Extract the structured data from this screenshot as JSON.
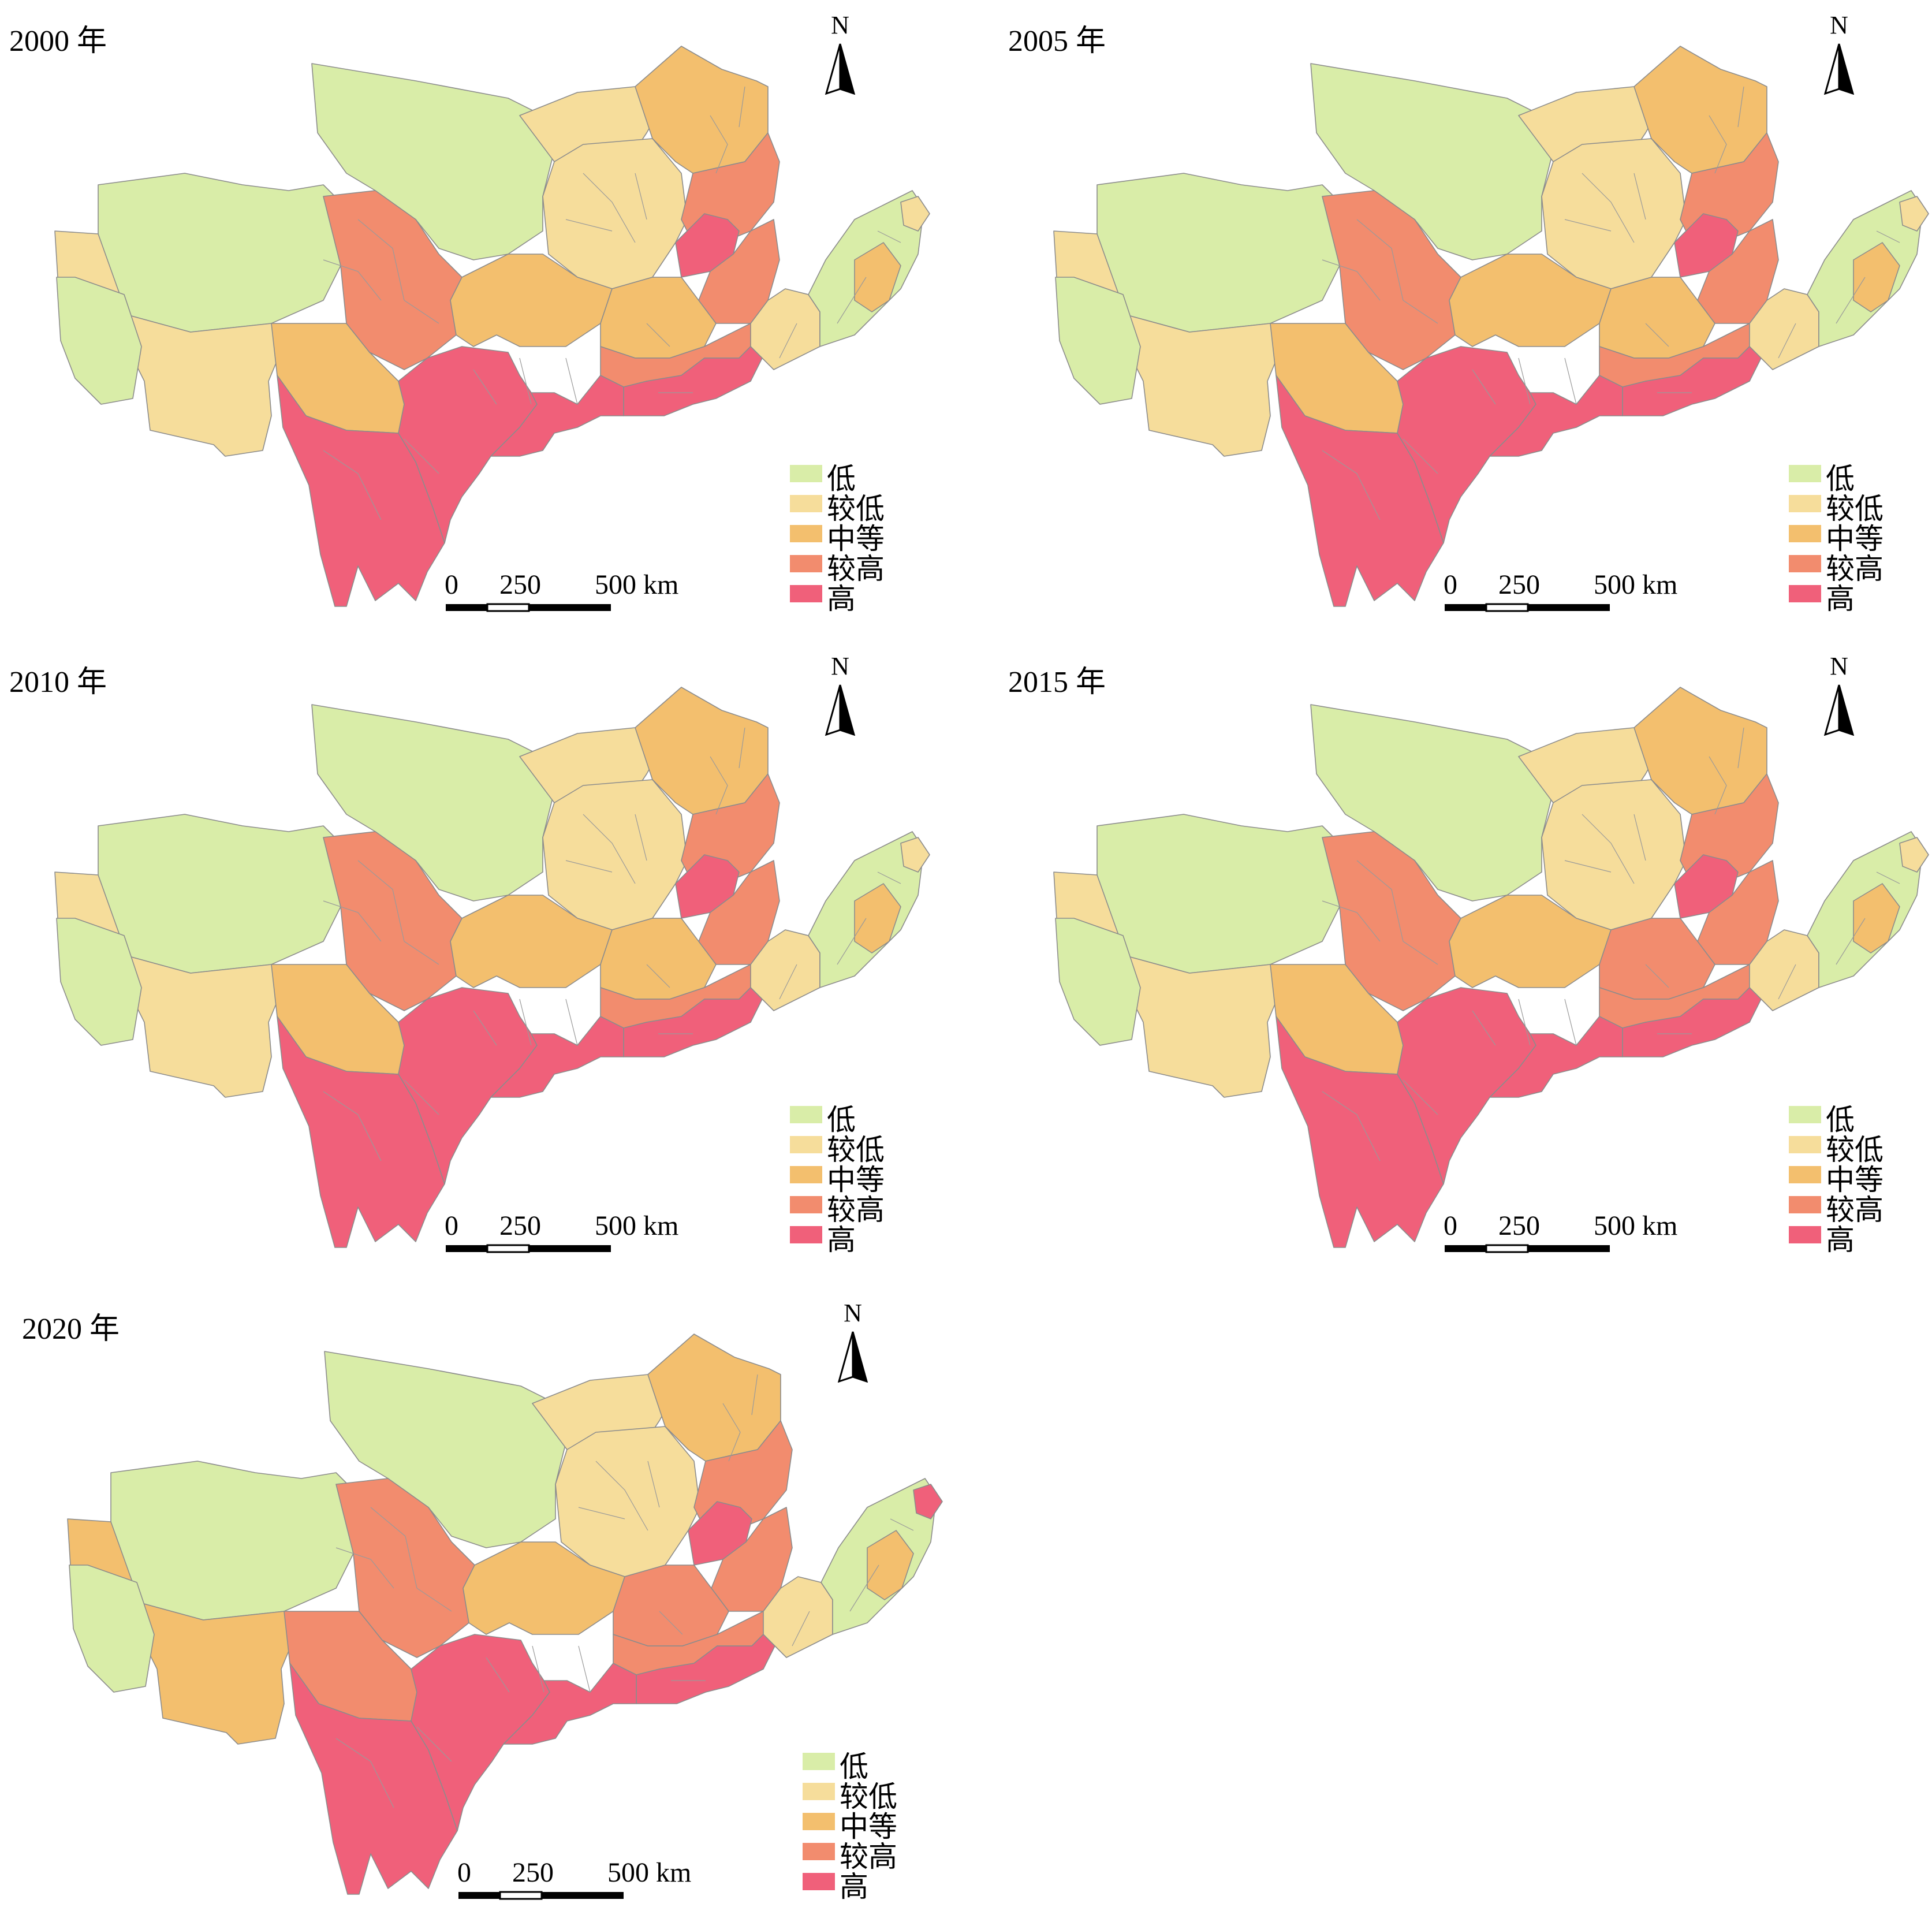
{
  "figure": {
    "panels": [
      {
        "title": "2000 年",
        "classes": {
          "west_north": "low",
          "west_big": "lower",
          "west_south": "low",
          "central_north": "low",
          "west_mid": "medium",
          "qilian": "higher",
          "sichuan_west": "high",
          "sichuan_east": "high",
          "ordos_north": "lower",
          "ordos_center": "lower",
          "east_north": "medium",
          "shanxi_north": "higher",
          "shanxi_core": "high",
          "shanxi_south": "higher",
          "gansu_east": "medium",
          "shaanxi_north": "medium",
          "henan_west": "higher",
          "east_south": "high",
          "shandong_west": "lower",
          "shandong_peninsula": "low",
          "shandong_east": "medium",
          "shandong_tip": "lower",
          "guanzhong": "high"
        }
      },
      {
        "title": "2005 年",
        "classes": {
          "west_north": "low",
          "west_big": "lower",
          "west_south": "low",
          "central_north": "low",
          "west_mid": "medium",
          "qilian": "higher",
          "sichuan_west": "high",
          "sichuan_east": "high",
          "ordos_north": "lower",
          "ordos_center": "lower",
          "east_north": "medium",
          "shanxi_north": "higher",
          "shanxi_core": "high",
          "shanxi_south": "higher",
          "gansu_east": "medium",
          "shaanxi_north": "medium",
          "henan_west": "higher",
          "east_south": "high",
          "shandong_west": "lower",
          "shandong_peninsula": "low",
          "shandong_east": "medium",
          "shandong_tip": "lower",
          "guanzhong": "high"
        }
      },
      {
        "title": "2010 年",
        "classes": {
          "west_north": "low",
          "west_big": "lower",
          "west_south": "low",
          "central_north": "low",
          "west_mid": "medium",
          "qilian": "higher",
          "sichuan_west": "high",
          "sichuan_east": "high",
          "ordos_north": "lower",
          "ordos_center": "lower",
          "east_north": "medium",
          "shanxi_north": "higher",
          "shanxi_core": "high",
          "shanxi_south": "higher",
          "gansu_east": "medium",
          "shaanxi_north": "medium",
          "henan_west": "higher",
          "east_south": "high",
          "shandong_west": "lower",
          "shandong_peninsula": "low",
          "shandong_east": "medium",
          "shandong_tip": "lower",
          "guanzhong": "high"
        }
      },
      {
        "title": "2015 年",
        "classes": {
          "west_north": "low",
          "west_big": "lower",
          "west_south": "low",
          "central_north": "low",
          "west_mid": "medium",
          "qilian": "higher",
          "sichuan_west": "high",
          "sichuan_east": "high",
          "ordos_north": "lower",
          "ordos_center": "lower",
          "east_north": "medium",
          "shanxi_north": "higher",
          "shanxi_core": "high",
          "shanxi_south": "higher",
          "gansu_east": "medium",
          "shaanxi_north": "higher",
          "henan_west": "higher",
          "east_south": "high",
          "shandong_west": "lower",
          "shandong_peninsula": "low",
          "shandong_east": "medium",
          "shandong_tip": "lower",
          "guanzhong": "high"
        }
      },
      {
        "title": "2020 年",
        "classes": {
          "west_north": "low",
          "west_big": "medium",
          "west_south": "low",
          "central_north": "low",
          "west_mid": "higher",
          "qilian": "higher",
          "sichuan_west": "high",
          "sichuan_east": "high",
          "ordos_north": "lower",
          "ordos_center": "lower",
          "east_north": "medium",
          "shanxi_north": "higher",
          "shanxi_core": "high",
          "shanxi_south": "higher",
          "gansu_east": "medium",
          "shaanxi_north": "higher",
          "henan_west": "higher",
          "east_south": "high",
          "shandong_west": "lower",
          "shandong_peninsula": "low",
          "shandong_east": "medium",
          "shandong_tip": "high",
          "guanzhong": "high"
        }
      }
    ],
    "north_label": "N",
    "scale_labels": [
      "0",
      "250",
      "500 km"
    ],
    "legend": [
      {
        "key": "low",
        "label": "低",
        "color": "#d9eda8"
      },
      {
        "key": "lower",
        "label": "较低",
        "color": "#f6dd9b"
      },
      {
        "key": "medium",
        "label": "中等",
        "color": "#f3bf6e"
      },
      {
        "key": "higher",
        "label": "较高",
        "color": "#f28c6e"
      },
      {
        "key": "high",
        "label": "高",
        "color": "#f0607a"
      }
    ]
  }
}
